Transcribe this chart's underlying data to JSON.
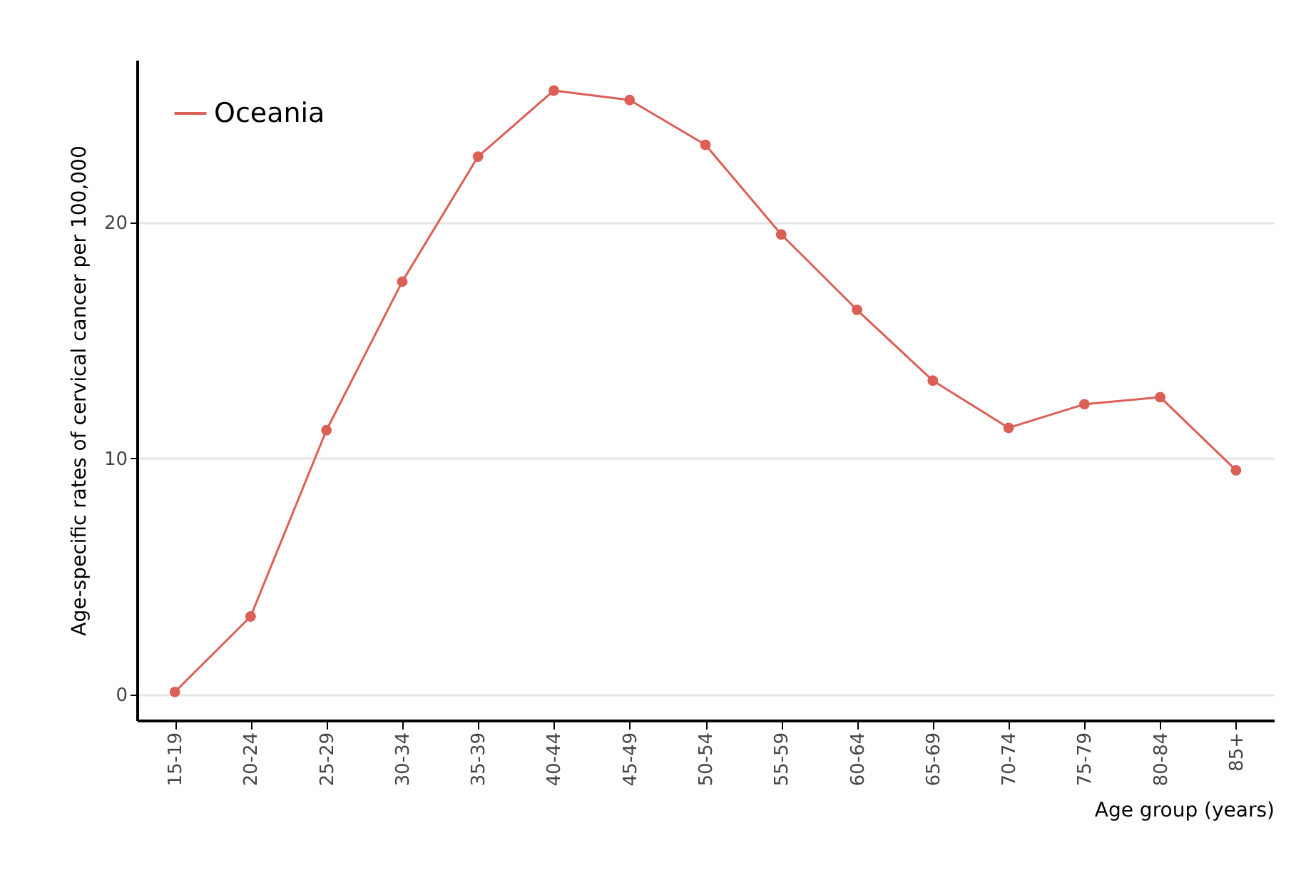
{
  "chart_data": {
    "type": "line",
    "xlabel": "Age group (years)",
    "ylabel": "Age-specific rates of cervical cancer per 100,000",
    "categories": [
      "15-19",
      "20-24",
      "25-29",
      "30-34",
      "35-39",
      "40-44",
      "45-49",
      "50-54",
      "55-59",
      "60-64",
      "65-69",
      "70-74",
      "75-79",
      "80-84",
      "85+"
    ],
    "series": [
      {
        "name": "Oceania",
        "color": "#dc5f55",
        "values": [
          0.1,
          3.3,
          11.2,
          17.5,
          22.8,
          25.6,
          25.2,
          23.3,
          19.5,
          16.3,
          13.3,
          11.3,
          12.3,
          12.6,
          9.5
        ]
      }
    ],
    "ylim": [
      -1.1,
      26.9
    ],
    "yticks": [
      0,
      10,
      20
    ],
    "grid": "y",
    "legend": "top left",
    "marker": "circle",
    "line_style": "solid"
  }
}
